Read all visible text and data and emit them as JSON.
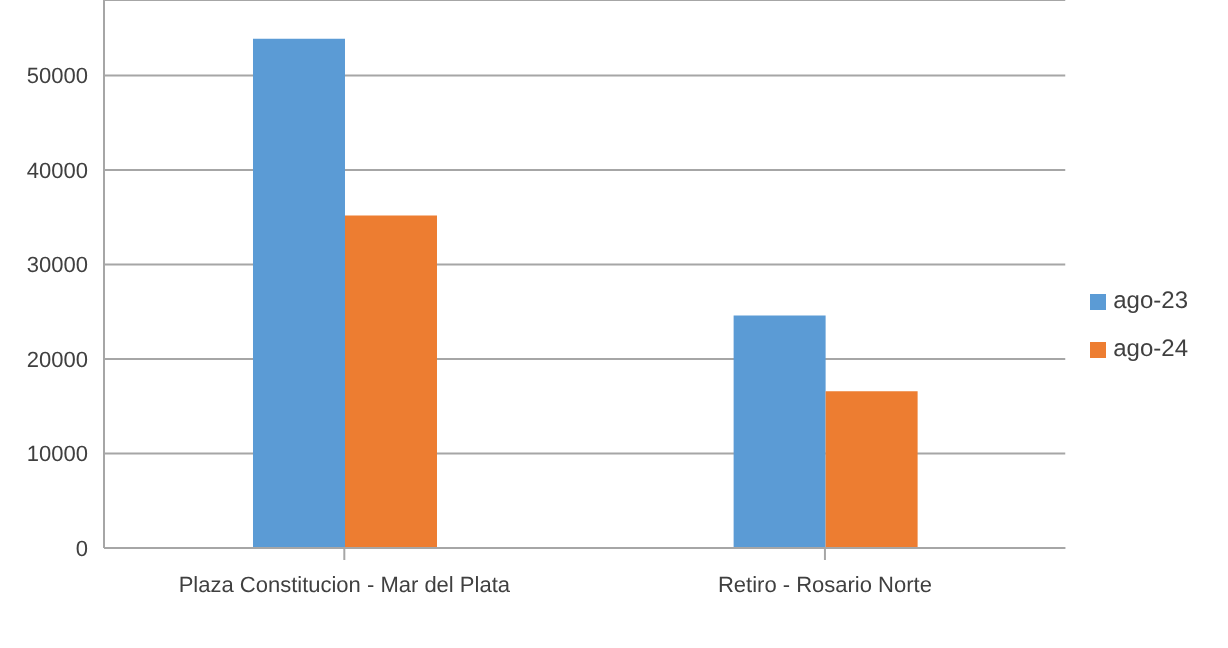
{
  "chart_data": {
    "type": "bar",
    "categories": [
      "Plaza Constitucion - Mar del Plata",
      "Retiro - Rosario Norte"
    ],
    "series": [
      {
        "name": "ago-23",
        "color": "#5b9bd5",
        "values": [
          53900,
          24600
        ]
      },
      {
        "name": "ago-24",
        "color": "#ed7d31",
        "values": [
          35200,
          16600
        ]
      }
    ],
    "ylim": [
      0,
      58000
    ],
    "yticks": [
      0,
      10000,
      20000,
      30000,
      40000,
      50000
    ],
    "grid": "y",
    "legend": "right"
  }
}
